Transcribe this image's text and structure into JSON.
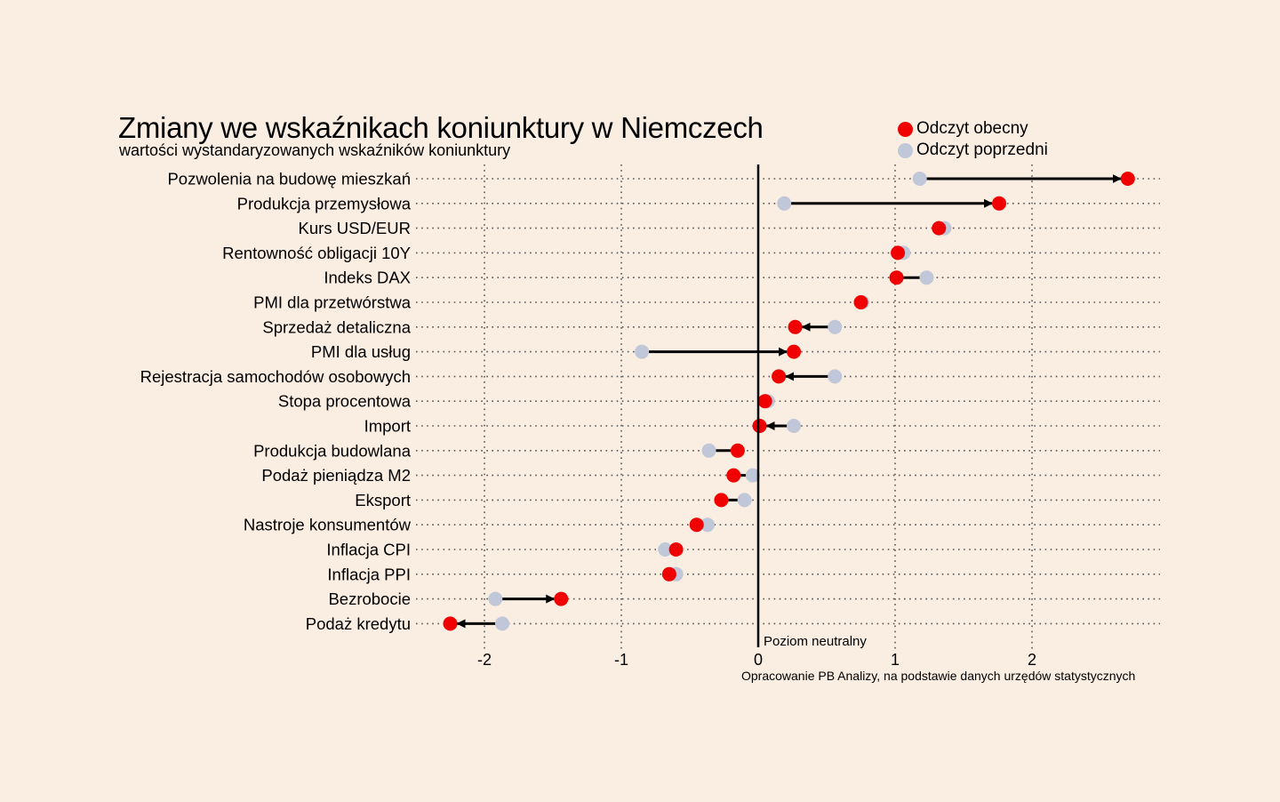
{
  "colors": {
    "background": "#faede1",
    "current": "#f00000",
    "previous": "#bfc7d8",
    "arrow": "#000000",
    "grid": "#555555"
  },
  "chart_data": {
    "type": "dumbbell",
    "title": "Zmiany we wskaźnikach koniunktury w Niemczech",
    "subtitle": "wartości wystandaryzowanych wskaźników koniunktury",
    "source": "Opracowanie PB Analizy, na podstawie danych urzędów statystycznych",
    "neutral_label": "Poziom neutralny",
    "legend": [
      {
        "name": "Odczyt obecny",
        "key": "current"
      },
      {
        "name": "Odczyt poprzedni",
        "key": "previous"
      }
    ],
    "legend_position": "top-right",
    "xlim": [
      -2.4,
      2.95
    ],
    "xticks": [
      -2,
      -1,
      0,
      1,
      2
    ],
    "xtick_labels": [
      "-2",
      "-1",
      "0",
      "1",
      "2"
    ],
    "grid": true,
    "categories": [
      "Pozwolenia na budowę mieszkań",
      "Produkcja przemysłowa",
      "Kurs USD/EUR",
      "Rentowność obligacji 10Y",
      "Indeks DAX",
      "PMI dla przetwórstwa",
      "Sprzedaż detaliczna",
      "PMI dla usług",
      "Rejestracja samochodów osobowych",
      "Stopa procentowa",
      "Import",
      "Produkcja budowlana",
      "Podaż pieniądza M2",
      "Eksport",
      "Nastroje konsumentów",
      "Inflacja CPI",
      "Inflacja PPI",
      "Bezrobocie",
      "Podaż kredytu"
    ],
    "series": [
      {
        "name": "Odczyt obecny",
        "values": [
          2.7,
          1.76,
          1.32,
          1.02,
          1.01,
          0.75,
          0.27,
          0.26,
          0.15,
          0.05,
          0.01,
          -0.15,
          -0.18,
          -0.27,
          -0.45,
          -0.6,
          -0.65,
          -1.44,
          -2.25
        ]
      },
      {
        "name": "Odczyt poprzedni",
        "values": [
          1.18,
          0.19,
          1.36,
          1.06,
          1.23,
          0.76,
          0.56,
          -0.85,
          0.56,
          0.07,
          0.26,
          -0.36,
          -0.04,
          -0.1,
          -0.37,
          -0.68,
          -0.6,
          -1.92,
          -1.87
        ]
      }
    ],
    "arrows": [
      true,
      true,
      false,
      false,
      false,
      false,
      true,
      true,
      true,
      false,
      true,
      false,
      false,
      false,
      false,
      false,
      false,
      true,
      true
    ]
  }
}
